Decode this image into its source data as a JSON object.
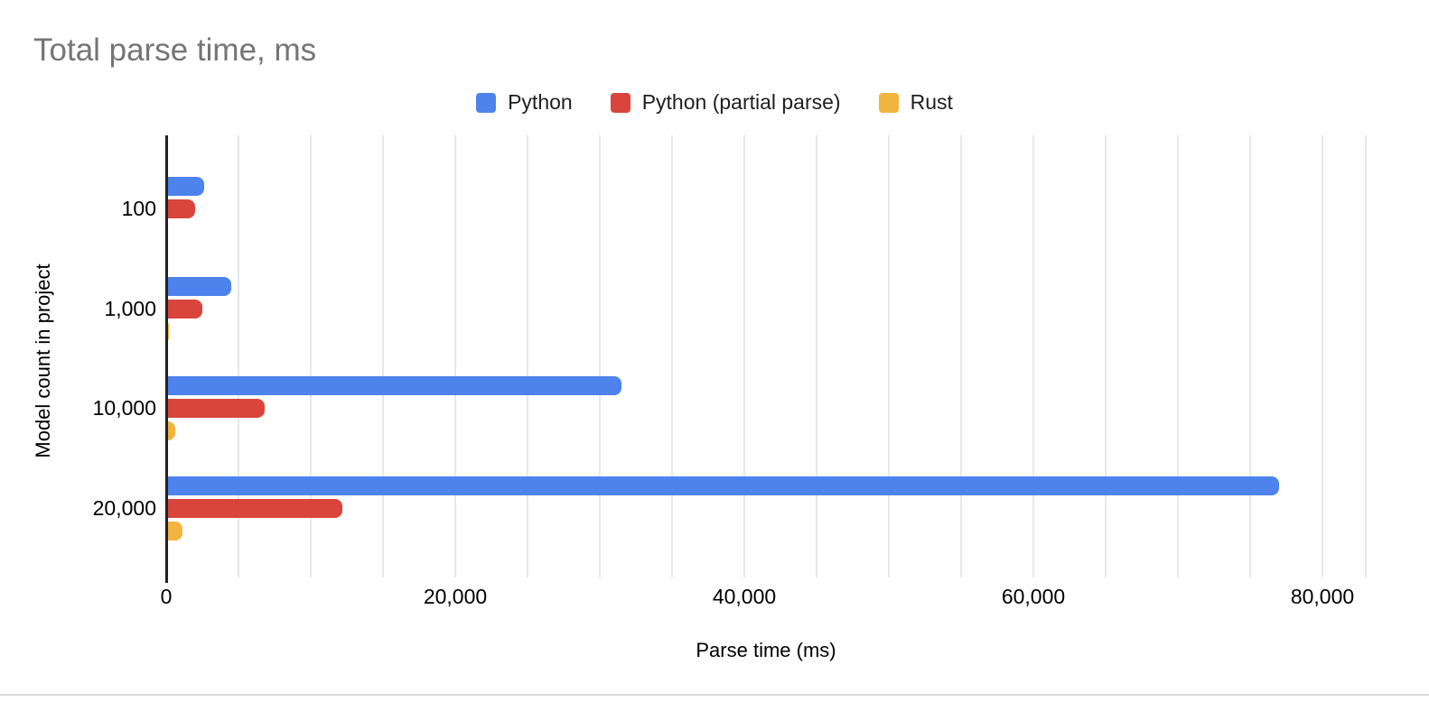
{
  "chart_data": {
    "type": "bar",
    "orientation": "horizontal",
    "title": "Total parse time, ms",
    "xlabel": "Parse time (ms)",
    "ylabel": "Model count in project",
    "categories": [
      "100",
      "1,000",
      "10,000",
      "20,000"
    ],
    "series": [
      {
        "name": "Python",
        "color": "#4e82ec",
        "values": [
          2600,
          4500,
          31500,
          77000
        ]
      },
      {
        "name": "Python (partial parse)",
        "color": "#d9453c",
        "values": [
          2000,
          2500,
          6800,
          12200
        ]
      },
      {
        "name": "Rust",
        "color": "#f1b53f",
        "values": [
          150,
          200,
          600,
          1100
        ]
      }
    ],
    "xlim": [
      0,
      83000
    ],
    "xticks": [
      {
        "value": 0,
        "label": "0"
      },
      {
        "value": 20000,
        "label": "20,000"
      },
      {
        "value": 40000,
        "label": "40,000"
      },
      {
        "value": 60000,
        "label": "60,000"
      },
      {
        "value": 80000,
        "label": "80,000"
      }
    ],
    "gridline_step": 5000,
    "grid": "vertical",
    "legend_position": "top"
  },
  "theme": {
    "title_color": "#757575",
    "text_color": "#1f1f1f",
    "axis_color": "#212121",
    "gridline_color": "#e8e8e8",
    "divider_color": "#d9d9d9"
  }
}
